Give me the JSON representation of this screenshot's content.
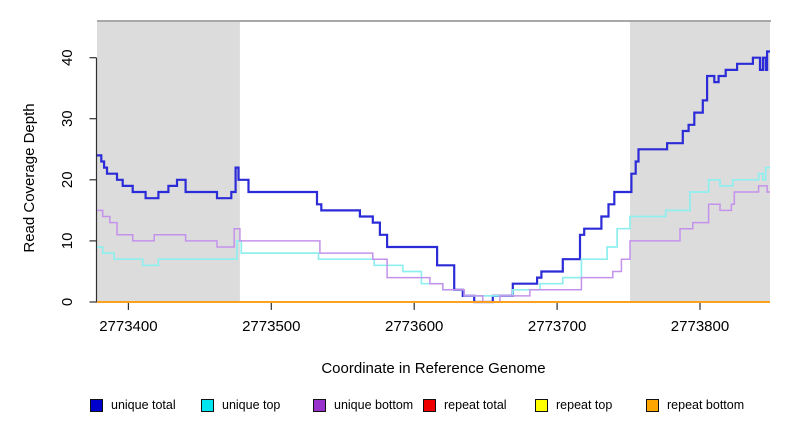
{
  "chart_data": {
    "type": "line",
    "step": true,
    "title": "",
    "xlabel": "Coordinate in Reference Genome",
    "ylabel": "Read Coverage Depth",
    "x_domain": [
      2773378,
      2773849
    ],
    "y_domain": [
      0,
      46
    ],
    "x_ticks": [
      2773400,
      2773500,
      2773600,
      2773700,
      2773800
    ],
    "y_ticks": [
      0,
      10,
      20,
      30,
      40
    ],
    "grid": false,
    "legend_position": "bottom",
    "shade_color": "#DCDCDC",
    "shaded_regions": [
      {
        "from": 2773378,
        "to": 2773478
      },
      {
        "from": 2773751,
        "to": 2773849
      }
    ],
    "series": [
      {
        "name": "unique total",
        "line_color": "#2B2BD7",
        "legend_color": "#0000CC",
        "width": 2.2,
        "points": [
          [
            2773378,
            24
          ],
          [
            2773381,
            23
          ],
          [
            2773383,
            22
          ],
          [
            2773385,
            21
          ],
          [
            2773392,
            20
          ],
          [
            2773396,
            19
          ],
          [
            2773403,
            18
          ],
          [
            2773412,
            17
          ],
          [
            2773421,
            18
          ],
          [
            2773428,
            19
          ],
          [
            2773434,
            20
          ],
          [
            2773440,
            18
          ],
          [
            2773462,
            17
          ],
          [
            2773472,
            18
          ],
          [
            2773475,
            22
          ],
          [
            2773477,
            20
          ],
          [
            2773484,
            18
          ],
          [
            2773532,
            16
          ],
          [
            2773535,
            15
          ],
          [
            2773562,
            14
          ],
          [
            2773571,
            13
          ],
          [
            2773576,
            11
          ],
          [
            2773581,
            9
          ],
          [
            2773616,
            6
          ],
          [
            2773628,
            2
          ],
          [
            2773634,
            1
          ],
          [
            2773642,
            0
          ],
          [
            2773655,
            1
          ],
          [
            2773669,
            3
          ],
          [
            2773686,
            4
          ],
          [
            2773689,
            5
          ],
          [
            2773704,
            7
          ],
          [
            2773716,
            11
          ],
          [
            2773719,
            12
          ],
          [
            2773731,
            14
          ],
          [
            2773736,
            16
          ],
          [
            2773740,
            18
          ],
          [
            2773752,
            21
          ],
          [
            2773755,
            23
          ],
          [
            2773757,
            25
          ],
          [
            2773777,
            26
          ],
          [
            2773788,
            28
          ],
          [
            2773792,
            29
          ],
          [
            2773796,
            31
          ],
          [
            2773802,
            33
          ],
          [
            2773805,
            37
          ],
          [
            2773810,
            36
          ],
          [
            2773813,
            37
          ],
          [
            2773818,
            38
          ],
          [
            2773826,
            39
          ],
          [
            2773837,
            40
          ],
          [
            2773842,
            38
          ],
          [
            2773844,
            40
          ],
          [
            2773846,
            38
          ],
          [
            2773847,
            41
          ],
          [
            2773849,
            41
          ]
        ]
      },
      {
        "name": "unique top",
        "line_color": "#8FEFEF",
        "legend_color": "#00E5EE",
        "width": 1.7,
        "points": [
          [
            2773378,
            9
          ],
          [
            2773382,
            8
          ],
          [
            2773390,
            7
          ],
          [
            2773410,
            6
          ],
          [
            2773421,
            7
          ],
          [
            2773476,
            10
          ],
          [
            2773479,
            8
          ],
          [
            2773533,
            7
          ],
          [
            2773572,
            6
          ],
          [
            2773592,
            5
          ],
          [
            2773605,
            3
          ],
          [
            2773620,
            2
          ],
          [
            2773635,
            1
          ],
          [
            2773669,
            2
          ],
          [
            2773688,
            3
          ],
          [
            2773704,
            4
          ],
          [
            2773717,
            7
          ],
          [
            2773735,
            9
          ],
          [
            2773742,
            12
          ],
          [
            2773751,
            14
          ],
          [
            2773776,
            15
          ],
          [
            2773793,
            18
          ],
          [
            2773806,
            20
          ],
          [
            2773814,
            19
          ],
          [
            2773823,
            20
          ],
          [
            2773841,
            21
          ],
          [
            2773844,
            20
          ],
          [
            2773846,
            22
          ],
          [
            2773849,
            22
          ]
        ]
      },
      {
        "name": "unique bottom",
        "line_color": "#C492EA",
        "legend_color": "#9932CC",
        "width": 1.5,
        "points": [
          [
            2773378,
            15
          ],
          [
            2773382,
            14
          ],
          [
            2773387,
            13
          ],
          [
            2773392,
            11
          ],
          [
            2773403,
            10
          ],
          [
            2773418,
            11
          ],
          [
            2773440,
            10
          ],
          [
            2773462,
            9
          ],
          [
            2773474,
            12
          ],
          [
            2773478,
            10
          ],
          [
            2773534,
            8
          ],
          [
            2773571,
            7
          ],
          [
            2773581,
            4
          ],
          [
            2773611,
            3
          ],
          [
            2773620,
            2
          ],
          [
            2773635,
            1
          ],
          [
            2773648,
            0
          ],
          [
            2773660,
            1
          ],
          [
            2773681,
            2
          ],
          [
            2773717,
            4
          ],
          [
            2773739,
            5
          ],
          [
            2773745,
            7
          ],
          [
            2773751,
            10
          ],
          [
            2773786,
            12
          ],
          [
            2773795,
            13
          ],
          [
            2773806,
            16
          ],
          [
            2773814,
            15
          ],
          [
            2773822,
            16
          ],
          [
            2773824,
            18
          ],
          [
            2773841,
            19
          ],
          [
            2773847,
            18
          ],
          [
            2773849,
            18
          ]
        ]
      },
      {
        "name": "repeat total",
        "line_color": "#DD0000",
        "legend_color": "#EE0000",
        "width": 1.5,
        "points": [
          [
            2773378,
            0
          ],
          [
            2773849,
            0
          ]
        ]
      },
      {
        "name": "repeat top",
        "line_color": "#FFFF00",
        "legend_color": "#FFFF00",
        "width": 1.5,
        "points": [
          [
            2773378,
            0
          ],
          [
            2773849,
            0
          ]
        ]
      },
      {
        "name": "repeat bottom",
        "line_color": "#FF9E1F",
        "legend_color": "#FFA500",
        "width": 1.8,
        "points": [
          [
            2773378,
            0
          ],
          [
            2773849,
            0
          ]
        ]
      }
    ]
  }
}
